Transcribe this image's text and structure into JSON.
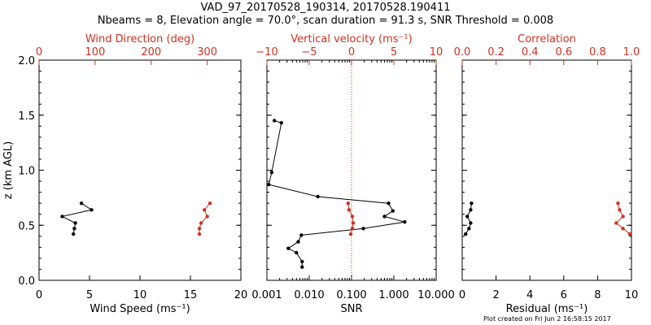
{
  "header": {
    "line1": "VAD_97_20170528_190314, 20170528.190411",
    "line2": "Nbeams = 8, Elevation angle = 70.0°, scan duration = 91.3 s, SNR Threshold = 0.008"
  },
  "footer": "Plot created on Fri Jun  2 16:58:15 2017",
  "colors": {
    "primary": "#000000",
    "secondary": "#d03020"
  },
  "chart_data": [
    {
      "type": "line",
      "ylabel": "z (km AGL)",
      "ylim": [
        0,
        2.0
      ],
      "yticks": [
        "0.0",
        "0.5",
        "1.0",
        "1.5",
        "2.0"
      ],
      "bottom_axis": {
        "label": "Wind Speed (ms⁻¹)",
        "lim": [
          0,
          20
        ],
        "ticks": [
          "0",
          "5",
          "10",
          "15",
          "20"
        ]
      },
      "top_axis": {
        "label": "Wind Direction (deg)",
        "lim": [
          0,
          360
        ],
        "ticks": [
          "0",
          "100",
          "200",
          "300"
        ]
      },
      "series": [
        {
          "axis": "bottom",
          "color": "#000000",
          "points": [
            [
              4.2,
              0.7
            ],
            [
              5.2,
              0.64
            ],
            [
              2.3,
              0.58
            ],
            [
              3.6,
              0.52
            ],
            [
              3.5,
              0.47
            ],
            [
              3.4,
              0.42
            ]
          ]
        },
        {
          "axis": "top",
          "color": "#d03020",
          "points": [
            [
              305,
              0.7
            ],
            [
              295,
              0.64
            ],
            [
              300,
              0.58
            ],
            [
              289,
              0.52
            ],
            [
              286,
              0.47
            ],
            [
              286,
              0.42
            ]
          ]
        }
      ]
    },
    {
      "type": "line",
      "bottom_axis": {
        "label": "SNR",
        "scale": "log",
        "lim": [
          0.001,
          10
        ],
        "ticks": [
          "0.001",
          "0.010",
          "0.100",
          "1.000",
          "10.000"
        ]
      },
      "top_axis": {
        "label": "Vertical velocity (ms⁻¹)",
        "lim": [
          -10,
          10
        ],
        "ticks": [
          "−10",
          "−5",
          "0",
          "5",
          "10"
        ],
        "reference_line": 0
      },
      "series": [
        {
          "axis": "bottom",
          "color": "#000000",
          "points": [
            [
              0.0015,
              1.45
            ],
            [
              0.0022,
              1.43
            ],
            [
              0.0013,
              0.98
            ],
            [
              0.0011,
              0.87
            ],
            [
              0.016,
              0.76
            ],
            [
              0.75,
              0.7
            ],
            [
              0.95,
              0.63
            ],
            [
              0.6,
              0.58
            ],
            [
              1.8,
              0.53
            ],
            [
              0.19,
              0.47
            ],
            [
              0.0065,
              0.41
            ],
            [
              0.0055,
              0.35
            ],
            [
              0.0032,
              0.29
            ],
            [
              0.005,
              0.25
            ],
            [
              0.0068,
              0.17
            ],
            [
              0.0068,
              0.12
            ]
          ]
        },
        {
          "axis": "top",
          "color": "#d03020",
          "points": [
            [
              -0.4,
              0.7
            ],
            [
              -0.3,
              0.64
            ],
            [
              0.1,
              0.58
            ],
            [
              0.2,
              0.52
            ],
            [
              0.1,
              0.47
            ],
            [
              -0.1,
              0.42
            ]
          ]
        }
      ]
    },
    {
      "type": "line",
      "bottom_axis": {
        "label": "Residual (ms⁻¹)",
        "lim": [
          0,
          10
        ],
        "ticks": [
          "0",
          "2",
          "4",
          "6",
          "8",
          "10"
        ]
      },
      "top_axis": {
        "label": "Correlation",
        "lim": [
          0,
          1.0
        ],
        "ticks": [
          "0.0",
          "0.2",
          "0.4",
          "0.6",
          "0.8",
          "1.0"
        ]
      },
      "series": [
        {
          "axis": "bottom",
          "color": "#000000",
          "points": [
            [
              0.55,
              0.7
            ],
            [
              0.5,
              0.64
            ],
            [
              0.3,
              0.58
            ],
            [
              0.5,
              0.52
            ],
            [
              0.4,
              0.47
            ],
            [
              0.2,
              0.42
            ]
          ]
        },
        {
          "axis": "top",
          "color": "#d03020",
          "points": [
            [
              0.92,
              0.7
            ],
            [
              0.93,
              0.64
            ],
            [
              0.95,
              0.58
            ],
            [
              0.91,
              0.52
            ],
            [
              0.95,
              0.47
            ],
            [
              0.99,
              0.42
            ]
          ]
        }
      ]
    }
  ]
}
